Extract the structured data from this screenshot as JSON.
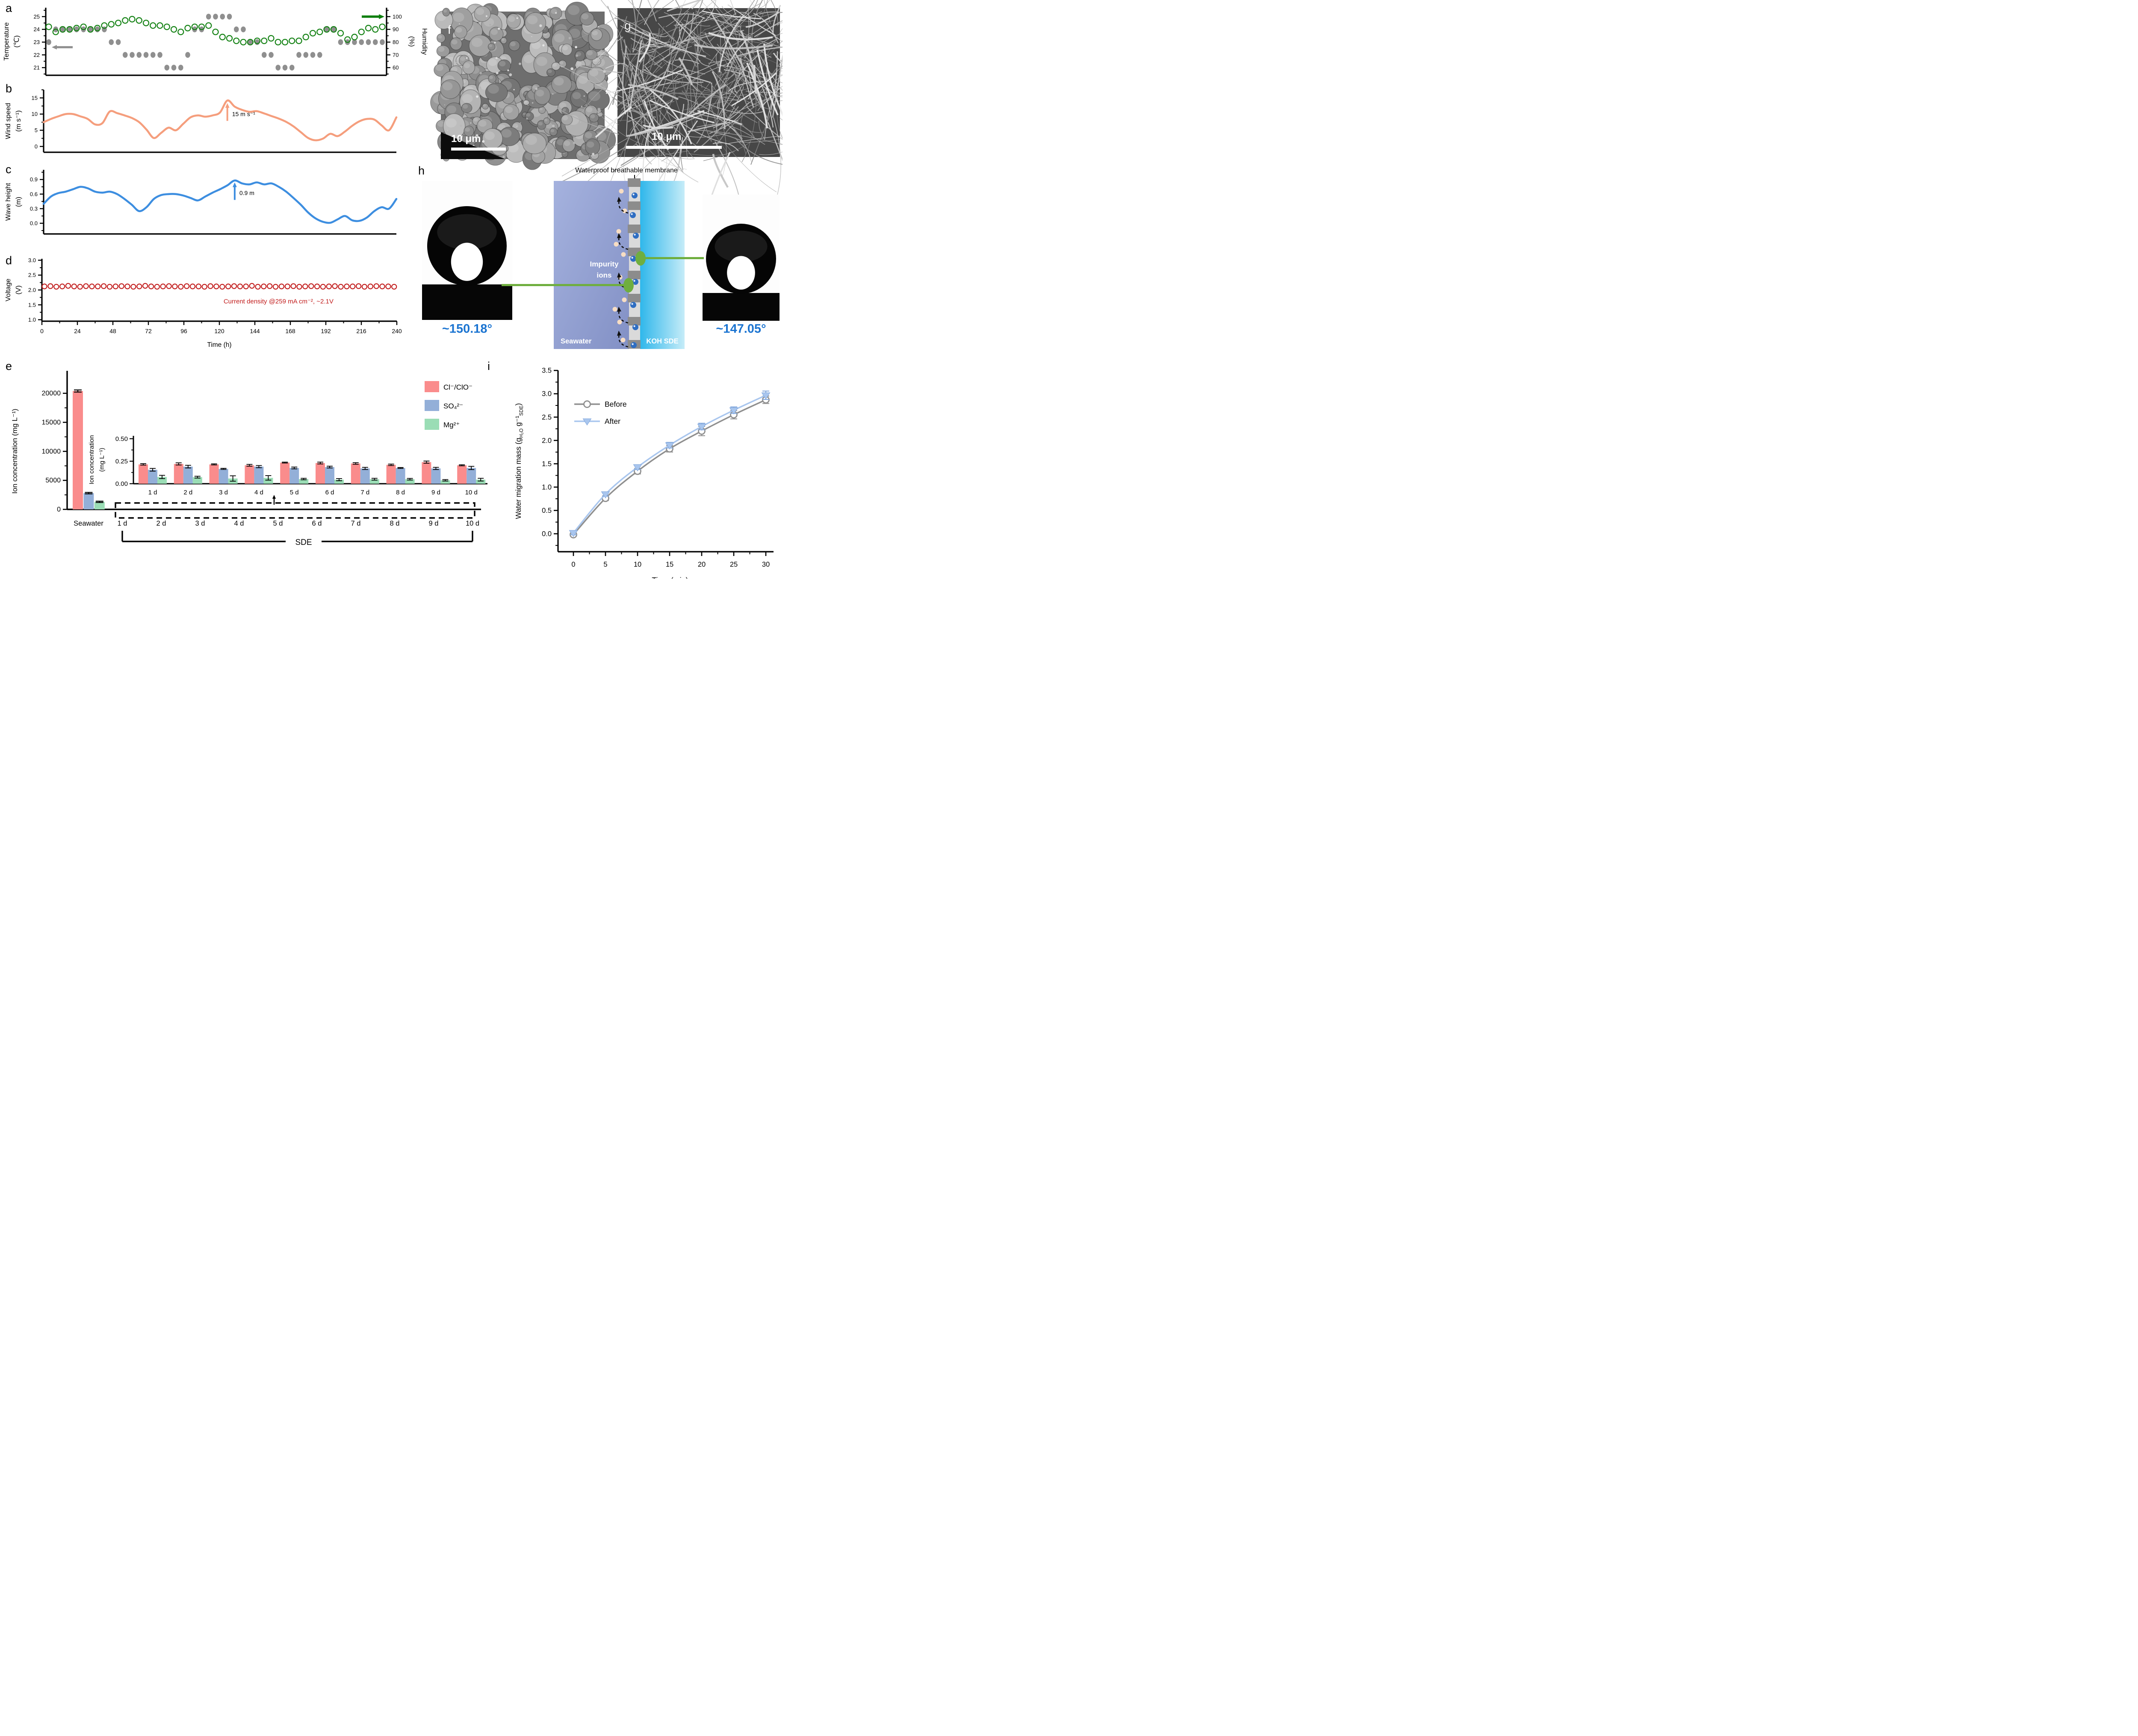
{
  "figure": {
    "background": "#ffffff"
  },
  "panels": {
    "a": {
      "label": "a"
    },
    "b": {
      "label": "b"
    },
    "c": {
      "label": "c"
    },
    "d": {
      "label": "d"
    },
    "e": {
      "label": "e"
    },
    "f": {
      "label": "f",
      "scalebar": "10 μm"
    },
    "g": {
      "label": "g",
      "scalebar": "10 μm"
    },
    "h": {
      "label": "h",
      "membrane_label": "Waterproof breathable membrane",
      "impurity_line1": "Impurity",
      "impurity_line2": "ions",
      "left_region": "Seawater",
      "right_region": "KOH SDE",
      "left_angle": "~150.18°",
      "right_angle": "~147.05°",
      "colors": {
        "seawater_top": "#A5B2DE",
        "seawater_bottom": "#8290C5",
        "koh_left": "#2FB7EB",
        "koh_right": "#C6ECF8",
        "membrane": "#DADADA",
        "block": "#8C8C8C",
        "droplet": "#2F6EC2",
        "impurity_dot": "#F7DDC3",
        "green": "#6FAE3F",
        "angle_text": "#1B74D1"
      }
    },
    "i": {
      "label": "i"
    }
  },
  "chart_data": [
    {
      "id": "a",
      "type": "scatter",
      "xlim": [
        0,
        240
      ],
      "x_interval": 5,
      "left": {
        "label_lines": [
          "Temperature",
          "(℃)"
        ],
        "ticks": [
          21,
          22,
          23,
          24,
          25
        ],
        "lim": [
          20.4,
          25.7
        ]
      },
      "right": {
        "label_lines": [
          "Humidity",
          "(%)"
        ],
        "ticks": [
          60,
          70,
          80,
          90,
          100
        ],
        "lim": [
          54,
          107
        ]
      },
      "series": [
        {
          "name": "Temperature",
          "axis": "left",
          "marker": "dot",
          "color": "#8F8F8F",
          "values": [
            23,
            24,
            24,
            24,
            24,
            24,
            24,
            24,
            24,
            23,
            23,
            22,
            22,
            22,
            22,
            22,
            22,
            21,
            21,
            21,
            22,
            24,
            24,
            25,
            25,
            25,
            25,
            24,
            24,
            23,
            23,
            22,
            22,
            21,
            21,
            21,
            22,
            22,
            22,
            22,
            24,
            24,
            23,
            23,
            23,
            23,
            23,
            23,
            23
          ]
        },
        {
          "name": "Humidity",
          "axis": "right",
          "marker": "circle",
          "color": "#168316",
          "values": [
            92,
            88,
            90,
            90,
            91,
            92,
            90,
            91,
            93,
            94,
            95,
            97,
            98,
            97,
            95,
            93,
            93,
            92,
            90,
            88,
            91,
            92,
            92,
            93,
            88,
            84,
            83,
            81,
            80,
            80,
            81,
            81,
            83,
            80,
            80,
            81,
            81,
            84,
            87,
            88,
            90,
            90,
            87,
            82,
            84,
            88,
            91,
            90,
            92
          ]
        }
      ],
      "arrow_left_y": 22.6,
      "arrow_left_color": "#8F8F8F",
      "arrow_right_y": 100,
      "arrow_right_color": "#0D7E0D"
    },
    {
      "id": "b",
      "type": "line",
      "color": "#F59E7D",
      "xlim": [
        0,
        240
      ],
      "x_interval": 5,
      "ylabel_lines": [
        "Wind speed",
        "(m s⁻¹)"
      ],
      "yticks": [
        "0",
        "5",
        "10",
        "15"
      ],
      "ylim": [
        -1.8,
        17.5
      ],
      "values": [
        7.5,
        8.5,
        9.3,
        10,
        10,
        9.3,
        8.5,
        6.8,
        7.2,
        10.8,
        10.3,
        9.6,
        8.8,
        7.5,
        5.2,
        2.6,
        4.2,
        5.8,
        5,
        7,
        9,
        9.6,
        9.2,
        9.6,
        10.5,
        14.2,
        12.3,
        11.3,
        10.7,
        10.9,
        10.2,
        9.4,
        8.6,
        7.6,
        6.2,
        4.4,
        2.6,
        1.9,
        2.4,
        3.9,
        3.2,
        4.6,
        6.4,
        7.8,
        8.5,
        8.3,
        6.5,
        5,
        9
      ],
      "annotation": {
        "text": "15 m s⁻¹",
        "x": 125,
        "y_tip": 13.4,
        "y_tail": 7.9,
        "text_y": 9.4
      }
    },
    {
      "id": "c",
      "type": "line",
      "color": "#3D8EE0",
      "xlim": [
        0,
        240
      ],
      "x_interval": 5,
      "ylabel_lines": [
        "Wave height",
        "(m)"
      ],
      "yticks": [
        "0.0",
        "0.3",
        "0.6",
        "0.9"
      ],
      "ylim": [
        -0.22,
        1.1
      ],
      "values": [
        0.4,
        0.55,
        0.62,
        0.65,
        0.7,
        0.75,
        0.72,
        0.65,
        0.63,
        0.65,
        0.6,
        0.5,
        0.38,
        0.25,
        0.33,
        0.5,
        0.58,
        0.6,
        0.6,
        0.57,
        0.52,
        0.47,
        0.55,
        0.63,
        0.7,
        0.78,
        0.88,
        0.82,
        0.8,
        0.84,
        0.8,
        0.82,
        0.75,
        0.65,
        0.52,
        0.38,
        0.22,
        0.1,
        0.03,
        0.01,
        0.08,
        0.15,
        0.06,
        0.05,
        0.12,
        0.25,
        0.33,
        0.3,
        0.5
      ],
      "annotation": {
        "text": "0.9 m",
        "x": 130,
        "y_tip": 0.84,
        "y_tail": 0.48,
        "text_y": 0.58
      }
    },
    {
      "id": "d",
      "type": "open-circle-series",
      "color": "#C11A1A",
      "xlim": [
        0,
        240
      ],
      "ylabel_lines": [
        "Voltage",
        "(V)"
      ],
      "yticks": [
        "1.0",
        "1.5",
        "2.0",
        "2.5",
        "3.0"
      ],
      "ylim": [
        0.95,
        3.05
      ],
      "xticks": [
        0,
        24,
        48,
        72,
        96,
        120,
        144,
        168,
        192,
        216,
        240
      ],
      "xlabel": "Time (h)",
      "values": [
        2.12,
        2.13,
        2.11,
        2.12,
        2.14,
        2.12,
        2.11,
        2.13,
        2.12,
        2.12,
        2.13,
        2.11,
        2.12,
        2.13,
        2.12,
        2.11,
        2.12,
        2.14,
        2.12,
        2.11,
        2.12,
        2.13,
        2.12,
        2.11,
        2.13,
        2.12,
        2.12,
        2.11,
        2.13,
        2.12,
        2.11,
        2.12,
        2.13,
        2.12,
        2.12,
        2.14,
        2.11,
        2.12,
        2.13,
        2.11,
        2.12,
        2.12,
        2.13,
        2.11,
        2.12,
        2.13,
        2.12,
        2.11,
        2.12,
        2.13,
        2.11,
        2.12,
        2.12,
        2.13,
        2.11,
        2.12,
        2.13,
        2.12,
        2.12,
        2.11
      ],
      "annotation": {
        "text": "Current density @259 mA cm⁻²,  ~2.1V",
        "x": 160,
        "y": 1.55
      }
    },
    {
      "id": "e",
      "type": "bar",
      "categories": [
        "Seawater",
        "1 d",
        "2 d",
        "3 d",
        "4 d",
        "5 d",
        "6 d",
        "7 d",
        "8 d",
        "9 d",
        "10 d"
      ],
      "series": [
        {
          "name": "Cl⁻/ClO⁻",
          "color": "#FA8C8C"
        },
        {
          "name": "SO₄²⁻",
          "color": "#93AFD8"
        },
        {
          "name": "Mg²⁺",
          "color": "#9ADDB5"
        }
      ],
      "seawater": {
        "values": [
          20400,
          2800,
          1300
        ],
        "err": [
          180,
          120,
          90
        ]
      },
      "days": {
        "cl": [
          0.215,
          0.22,
          0.215,
          0.205,
          0.235,
          0.23,
          0.225,
          0.21,
          0.24,
          0.205
        ],
        "cl_err": [
          0.008,
          0.012,
          0.006,
          0.01,
          0.005,
          0.01,
          0.009,
          0.008,
          0.012,
          0.006
        ],
        "so4": [
          0.155,
          0.19,
          0.165,
          0.19,
          0.175,
          0.185,
          0.17,
          0.175,
          0.17,
          0.175
        ],
        "so4_err": [
          0.015,
          0.015,
          0.006,
          0.012,
          0.01,
          0.01,
          0.012,
          0.005,
          0.012,
          0.018
        ],
        "mg": [
          0.075,
          0.073,
          0.058,
          0.065,
          0.052,
          0.045,
          0.05,
          0.05,
          0.038,
          0.045
        ],
        "mg_err": [
          0.018,
          0.01,
          0.03,
          0.025,
          0.008,
          0.012,
          0.01,
          0.009,
          0.008,
          0.015
        ]
      },
      "ylabel": "Ion concentration (mg L⁻¹)",
      "yticks": [
        "0",
        "5000",
        "10000",
        "15000",
        "20000"
      ],
      "ylim": [
        0,
        22500
      ],
      "bracket_label": "SDE",
      "inset": {
        "ylabel_lines": [
          "Ion concentration",
          "(mg L⁻¹)"
        ],
        "yticks": [
          "0.00",
          "0.25",
          "0.50"
        ],
        "ylim": [
          0,
          0.52
        ]
      }
    },
    {
      "id": "i",
      "type": "line-scatter",
      "x": [
        0,
        5,
        10,
        15,
        20,
        25,
        30
      ],
      "series": [
        {
          "name": "Before",
          "color": "#8F8F8F",
          "marker": "circle",
          "values": [
            0.0,
            0.78,
            1.36,
            1.84,
            2.22,
            2.57,
            2.89
          ],
          "err": [
            0.03,
            0.05,
            0.06,
            0.07,
            0.1,
            0.09,
            0.08
          ]
        },
        {
          "name": "After",
          "color": "#A9C6EE",
          "marker": "triangle-down",
          "values": [
            0.0,
            0.83,
            1.41,
            1.88,
            2.28,
            2.63,
            2.95
          ],
          "err": [
            0.04,
            0.04,
            0.05,
            0.06,
            0.07,
            0.07,
            0.09
          ]
        }
      ],
      "ylabel_segments": [
        {
          "t": "Water migration mass (g"
        },
        {
          "t": "H₂O",
          "s": "sub"
        },
        {
          "t": " g"
        },
        {
          "t": "⁻¹"
        },
        {
          "t": "SDE",
          "s": "sub"
        },
        {
          "t": ")"
        }
      ],
      "yticks": [
        "0.0",
        "0.5",
        "1.0",
        "1.5",
        "2.0",
        "2.5",
        "3.0",
        "3.5"
      ],
      "ylim": [
        -0.45,
        3.65
      ],
      "xticks": [
        0,
        5,
        10,
        15,
        20,
        25,
        30
      ],
      "xlabel": "Time (min)"
    }
  ]
}
